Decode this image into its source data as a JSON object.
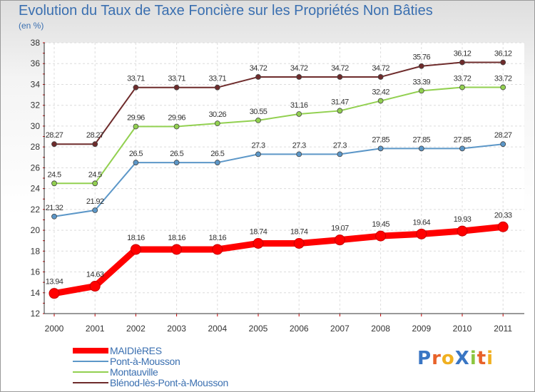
{
  "chart_data": {
    "type": "line",
    "title": "Evolution du Taux de Taxe Foncière sur les Propriétés Non Bâties",
    "ylabel": "(en %)",
    "xlabel": "",
    "categories": [
      "2000",
      "2001",
      "2002",
      "2003",
      "2004",
      "2005",
      "2006",
      "2007",
      "2008",
      "2009",
      "2010",
      "2011"
    ],
    "ylim": [
      12,
      38
    ],
    "yticks": [
      12,
      14,
      16,
      18,
      20,
      22,
      24,
      26,
      28,
      30,
      32,
      34,
      36,
      38
    ],
    "grid": true,
    "legend_position": "bottom-left",
    "series": [
      {
        "name": "MAIDIèRES",
        "color": "#ff0000",
        "values": [
          13.94,
          14.63,
          18.16,
          18.16,
          18.16,
          18.74,
          18.74,
          19.07,
          19.45,
          19.64,
          19.93,
          20.33
        ],
        "labels": [
          "13.94",
          "14.63",
          "18.16",
          "18.16",
          "18.16",
          "18.74",
          "18.74",
          "19.07",
          "19.45",
          "19.64",
          "19.93",
          "20.33"
        ]
      },
      {
        "name": "Pont-à-Mousson",
        "color": "#5c97c8",
        "values": [
          21.32,
          21.92,
          26.5,
          26.5,
          26.5,
          27.3,
          27.3,
          27.3,
          27.85,
          27.85,
          27.85,
          28.27
        ],
        "labels": [
          "21.32",
          "21.92",
          "26.5",
          "26.5",
          "26.5",
          "27.3",
          "27.3",
          "27.3",
          "27.85",
          "27.85",
          "27.85",
          "28.27"
        ]
      },
      {
        "name": "Montauville",
        "color": "#92d050",
        "values": [
          24.5,
          24.5,
          29.96,
          29.96,
          30.26,
          30.55,
          31.16,
          31.47,
          32.42,
          33.39,
          33.72,
          33.72
        ],
        "labels": [
          "24.5",
          "24.5",
          "29.96",
          "29.96",
          "30.26",
          "30.55",
          "31.16",
          "31.47",
          "32.42",
          "33.39",
          "33.72",
          "33.72"
        ]
      },
      {
        "name": "Blénod-lès-Pont-à-Mousson",
        "color": "#6e2b2b",
        "values": [
          28.27,
          28.27,
          33.71,
          33.71,
          33.71,
          34.72,
          34.72,
          34.72,
          34.72,
          35.76,
          36.12,
          36.12
        ],
        "labels": [
          "28.27",
          "28.27",
          "33.71",
          "33.71",
          "33.71",
          "34.72",
          "34.72",
          "34.72",
          "34.72",
          "35.76",
          "36.12",
          "36.12"
        ]
      }
    ]
  },
  "logo": {
    "text": "ProXiti",
    "letters": [
      "P",
      "r",
      "o",
      "X",
      "i",
      "t",
      "i"
    ],
    "colors": [
      "#3a76c4",
      "#e8622a",
      "#f0b020",
      "#3a76c4",
      "#8cc63f",
      "#e8622a",
      "#f0b020"
    ]
  }
}
